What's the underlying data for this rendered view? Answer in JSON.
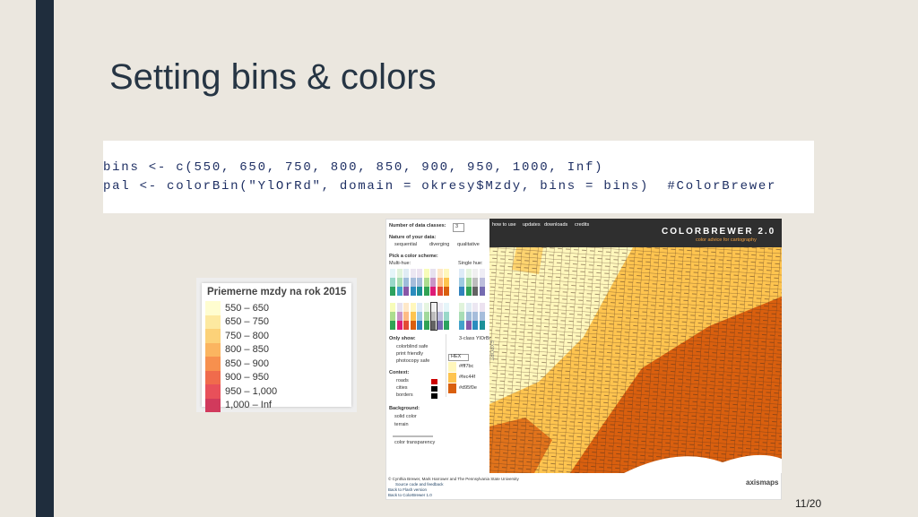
{
  "slide": {
    "title": "Setting bins & colors",
    "page": "11/20"
  },
  "code": {
    "lines": [
      "bins <- c(550, 650, 750, 800, 850, 900, 950, 1000, Inf)",
      "pal <- colorBin(\"YlOrRd\", domain = okresy$Mzdy, bins = bins)  #ColorBrewer"
    ]
  },
  "legend": {
    "title": "Priemerne mzdy na rok 2015",
    "items": [
      "550 – 650",
      "650 – 750",
      "750 – 800",
      "800 – 850",
      "850 – 900",
      "900 – 950",
      "950 – 1,000",
      "1,000 – Inf"
    ]
  },
  "colorbrewer": {
    "nav": [
      "how to use",
      "updates",
      "downloads",
      "credits"
    ],
    "logo": "COLORBREWER 2.0",
    "tagline": "color advice for cartography",
    "classes_label": "Number of data classes:",
    "classes_value": "3",
    "nature_label": "Nature of your data:",
    "nature_options": [
      "sequential",
      "diverging",
      "qualitative"
    ],
    "scheme_label": "Pick a color scheme:",
    "multi_hue": "Multi-hue:",
    "single_hue": "Single hue:",
    "only_show": "Only show:",
    "filters": [
      "colorblind safe",
      "print friendly",
      "photocopy safe"
    ],
    "context": "Context:",
    "context_options": [
      "roads",
      "cities",
      "borders"
    ],
    "background": "Background:",
    "background_options": [
      "solid color",
      "terrain"
    ],
    "transparency": "color transparency",
    "scheme_name": "3-class YlOrBr",
    "format": "HEX",
    "export": "EXPORT",
    "hex": [
      "#fff7bc",
      "#fec44f",
      "#d95f0e"
    ],
    "footer": [
      "© Cynthia Brewer, Mark Harrower and The Pennsylvania State University",
      "Source code and feedback",
      "Back to Flash version",
      "Back to ColorBrewer 1.0"
    ],
    "brand": "axismaps"
  }
}
